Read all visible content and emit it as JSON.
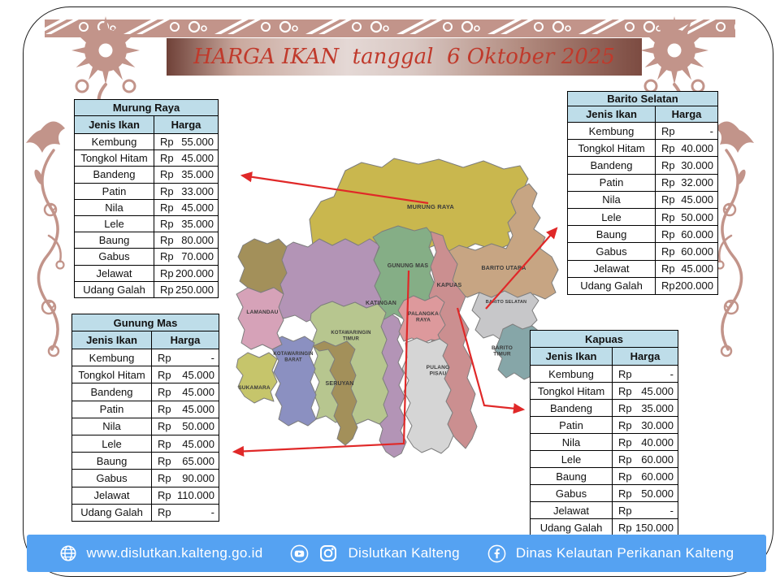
{
  "banner": {
    "title": "HARGA IKAN  tanggal  6 Oktober 2025",
    "text_color": "#c0392b"
  },
  "tables": {
    "murung_raya": {
      "title": "Murung Raya",
      "col_fish": "Jenis Ikan",
      "col_price": "Harga",
      "rows": [
        {
          "fish": "Kembung",
          "currency": "Rp",
          "price": "55.000"
        },
        {
          "fish": "Tongkol Hitam",
          "currency": "Rp",
          "price": "45.000"
        },
        {
          "fish": "Bandeng",
          "currency": "Rp",
          "price": "35.000"
        },
        {
          "fish": "Patin",
          "currency": "Rp",
          "price": "33.000"
        },
        {
          "fish": "Nila",
          "currency": "Rp",
          "price": "45.000"
        },
        {
          "fish": "Lele",
          "currency": "Rp",
          "price": "35.000"
        },
        {
          "fish": "Baung",
          "currency": "Rp",
          "price": "80.000"
        },
        {
          "fish": "Gabus",
          "currency": "Rp",
          "price": "70.000"
        },
        {
          "fish": "Jelawat",
          "currency": "Rp",
          "price": "200.000"
        },
        {
          "fish": "Udang Galah",
          "currency": "Rp",
          "price": "250.000"
        }
      ]
    },
    "barito_selatan": {
      "title": "Barito Selatan",
      "col_fish": "Jenis Ikan",
      "col_price": "Harga",
      "rows": [
        {
          "fish": "Kembung",
          "currency": "Rp",
          "price": "-"
        },
        {
          "fish": "Tongkol Hitam",
          "currency": "Rp",
          "price": "40.000"
        },
        {
          "fish": "Bandeng",
          "currency": "Rp",
          "price": "30.000"
        },
        {
          "fish": "Patin",
          "currency": "Rp",
          "price": "32.000"
        },
        {
          "fish": "Nila",
          "currency": "Rp",
          "price": "45.000"
        },
        {
          "fish": "Lele",
          "currency": "Rp",
          "price": "50.000"
        },
        {
          "fish": "Baung",
          "currency": "Rp",
          "price": "60.000"
        },
        {
          "fish": "Gabus",
          "currency": "Rp",
          "price": "60.000"
        },
        {
          "fish": "Jelawat",
          "currency": "Rp",
          "price": "45.000"
        },
        {
          "fish": "Udang Galah",
          "currency": "Rp",
          "price": "200.000"
        }
      ]
    },
    "gunung_mas": {
      "title": "Gunung Mas",
      "col_fish": "Jenis Ikan",
      "col_price": "Harga",
      "rows": [
        {
          "fish": "Kembung",
          "currency": "Rp",
          "price": "-"
        },
        {
          "fish": "Tongkol Hitam",
          "currency": "Rp",
          "price": "45.000"
        },
        {
          "fish": "Bandeng",
          "currency": "Rp",
          "price": "45.000"
        },
        {
          "fish": "Patin",
          "currency": "Rp",
          "price": "45.000"
        },
        {
          "fish": "Nila",
          "currency": "Rp",
          "price": "50.000"
        },
        {
          "fish": "Lele",
          "currency": "Rp",
          "price": "45.000"
        },
        {
          "fish": "Baung",
          "currency": "Rp",
          "price": "65.000"
        },
        {
          "fish": "Gabus",
          "currency": "Rp",
          "price": "90.000"
        },
        {
          "fish": "Jelawat",
          "currency": "Rp",
          "price": "110.000"
        },
        {
          "fish": "Udang Galah",
          "currency": "Rp",
          "price": "-"
        }
      ]
    },
    "kapuas": {
      "title": "Kapuas",
      "col_fish": "Jenis Ikan",
      "col_price": "Harga",
      "rows": [
        {
          "fish": "Kembung",
          "currency": "Rp",
          "price": "-"
        },
        {
          "fish": "Tongkol Hitam",
          "currency": "Rp",
          "price": "45.000"
        },
        {
          "fish": "Bandeng",
          "currency": "Rp",
          "price": "35.000"
        },
        {
          "fish": "Patin",
          "currency": "Rp",
          "price": "30.000"
        },
        {
          "fish": "Nila",
          "currency": "Rp",
          "price": "40.000"
        },
        {
          "fish": "Lele",
          "currency": "Rp",
          "price": "60.000"
        },
        {
          "fish": "Baung",
          "currency": "Rp",
          "price": "60.000"
        },
        {
          "fish": "Gabus",
          "currency": "Rp",
          "price": "50.000"
        },
        {
          "fish": "Jelawat",
          "currency": "Rp",
          "price": "-"
        },
        {
          "fish": "Udang Galah",
          "currency": "Rp",
          "price": "150.000"
        }
      ]
    }
  },
  "map": {
    "regions": [
      {
        "name": "MURUNG RAYA",
        "color": "#c9b74e"
      },
      {
        "name": "BARITO UTARA",
        "color": "#c7a583"
      },
      {
        "name": "KATINGAN",
        "color": "#b394b6"
      },
      {
        "name": "GUNUNG MAS",
        "color": "#85ae86"
      },
      {
        "name": "KAPUAS",
        "color": "#cb8f90"
      },
      {
        "name": "BARITO SELATAN",
        "color": "#c7c7c9"
      },
      {
        "name": "BARITO TIMUR",
        "color": "#86a6a8"
      },
      {
        "name": "PALANGKA RAYA",
        "color": "#dd999c"
      },
      {
        "name": "PULANG PISAU",
        "color": "#d5d5d5"
      },
      {
        "name": "KOTAWARINGIN TIMUR",
        "color": "#b7c68f"
      },
      {
        "name": "SERUYAN",
        "color": "#a3905a"
      },
      {
        "name": "KOTAWARINGIN BARAT",
        "color": "#8b90c1"
      },
      {
        "name": "LAMANDAU",
        "color": "#d6a2b8"
      },
      {
        "name": "SUKAMARA",
        "color": "#c6c56b"
      }
    ]
  },
  "footer": {
    "website": "www.dislutkan.kalteng.go.id",
    "social_label": "Dislutkan Kalteng",
    "facebook_label": "Dinas Kelautan Perikanan Kalteng",
    "bar_color": "#55a2f2",
    "icons": [
      "globe-icon",
      "youtube-icon",
      "instagram-icon",
      "facebook-icon"
    ]
  },
  "colors": {
    "ornament": "#c2948a",
    "table_header": "#bedde9",
    "arrow": "#e02828",
    "border": "#1c1c1c"
  }
}
